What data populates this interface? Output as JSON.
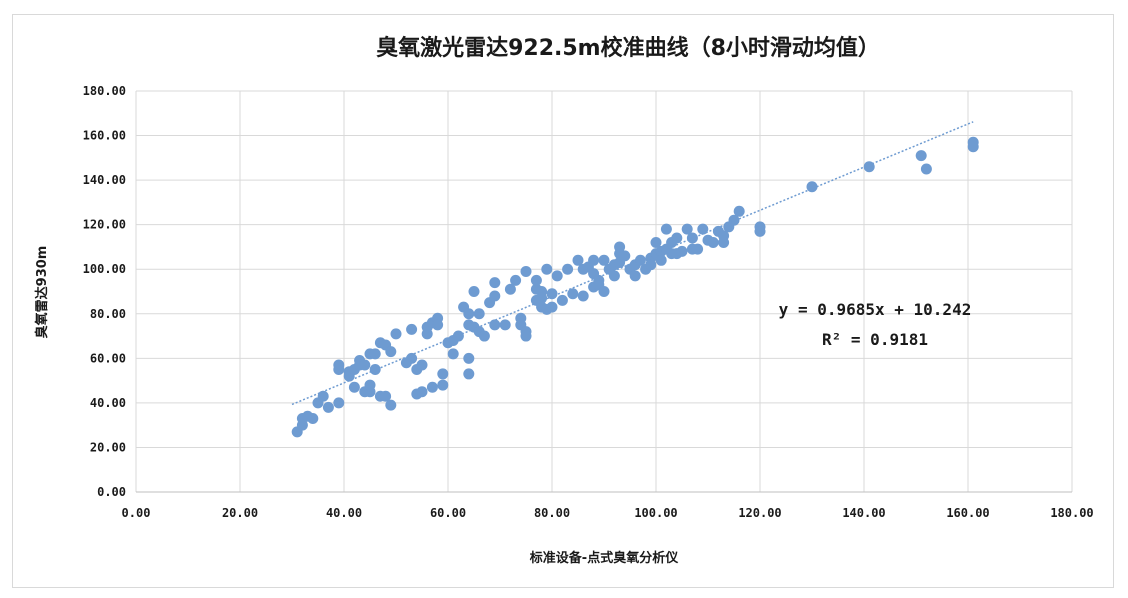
{
  "chart_data": {
    "type": "scatter",
    "title": "臭氧激光雷达922.5m校准曲线（8小时滑动均值）",
    "xlabel": "标准设备-点式臭氧分析仪",
    "ylabel": "臭氧雷达930m",
    "xlim": [
      0,
      180
    ],
    "ylim": [
      0,
      180
    ],
    "x_ticks": [
      "0.00",
      "20.00",
      "40.00",
      "60.00",
      "80.00",
      "100.00",
      "120.00",
      "140.00",
      "160.00",
      "180.00"
    ],
    "y_ticks": [
      "0.00",
      "20.00",
      "40.00",
      "60.00",
      "80.00",
      "100.00",
      "120.00",
      "140.00",
      "160.00",
      "180.00"
    ],
    "grid": true,
    "marker_color": "#6e9bd1",
    "trendline": {
      "slope": 0.9685,
      "intercept": 10.242,
      "x_range": [
        30,
        161
      ],
      "color": "#6e9bd1",
      "style": "dotted"
    },
    "equation_label": "y = 0.9685x + 10.242",
    "r2_label": "R² = 0.9181",
    "points": [
      [
        31,
        27
      ],
      [
        32,
        30
      ],
      [
        32,
        33
      ],
      [
        33,
        34
      ],
      [
        34,
        33
      ],
      [
        35,
        40
      ],
      [
        36,
        43
      ],
      [
        37,
        38
      ],
      [
        39,
        40
      ],
      [
        39,
        55
      ],
      [
        39,
        57
      ],
      [
        41,
        52
      ],
      [
        41,
        54
      ],
      [
        42,
        55
      ],
      [
        42,
        47
      ],
      [
        43,
        59
      ],
      [
        43,
        57
      ],
      [
        44,
        45
      ],
      [
        44,
        57
      ],
      [
        45,
        45
      ],
      [
        45,
        48
      ],
      [
        45,
        62
      ],
      [
        46,
        55
      ],
      [
        46,
        62
      ],
      [
        47,
        43
      ],
      [
        47,
        67
      ],
      [
        48,
        66
      ],
      [
        48,
        43
      ],
      [
        49,
        39
      ],
      [
        49,
        63
      ],
      [
        50,
        71
      ],
      [
        52,
        58
      ],
      [
        53,
        60
      ],
      [
        53,
        73
      ],
      [
        54,
        55
      ],
      [
        54,
        44
      ],
      [
        55,
        45
      ],
      [
        55,
        57
      ],
      [
        56,
        71
      ],
      [
        56,
        74
      ],
      [
        57,
        47
      ],
      [
        57,
        76
      ],
      [
        58,
        78
      ],
      [
        58,
        75
      ],
      [
        59,
        53
      ],
      [
        59,
        48
      ],
      [
        60,
        67
      ],
      [
        61,
        62
      ],
      [
        61,
        68
      ],
      [
        62,
        70
      ],
      [
        63,
        83
      ],
      [
        64,
        60
      ],
      [
        64,
        53
      ],
      [
        64,
        80
      ],
      [
        64,
        75
      ],
      [
        65,
        74
      ],
      [
        65,
        90
      ],
      [
        66,
        72
      ],
      [
        66,
        80
      ],
      [
        67,
        70
      ],
      [
        68,
        85
      ],
      [
        69,
        88
      ],
      [
        69,
        94
      ],
      [
        69,
        75
      ],
      [
        71,
        75
      ],
      [
        72,
        91
      ],
      [
        73,
        95
      ],
      [
        74,
        75
      ],
      [
        74,
        78
      ],
      [
        75,
        99
      ],
      [
        75,
        72
      ],
      [
        75,
        70
      ],
      [
        77,
        86
      ],
      [
        77,
        91
      ],
      [
        77,
        95
      ],
      [
        78,
        90
      ],
      [
        78,
        83
      ],
      [
        78,
        87
      ],
      [
        79,
        82
      ],
      [
        79,
        100
      ],
      [
        80,
        89
      ],
      [
        80,
        83
      ],
      [
        81,
        97
      ],
      [
        82,
        86
      ],
      [
        83,
        100
      ],
      [
        84,
        89
      ],
      [
        85,
        104
      ],
      [
        86,
        100
      ],
      [
        86,
        88
      ],
      [
        87,
        101
      ],
      [
        88,
        104
      ],
      [
        88,
        98
      ],
      [
        88,
        92
      ],
      [
        89,
        95
      ],
      [
        89,
        93
      ],
      [
        90,
        104
      ],
      [
        90,
        90
      ],
      [
        91,
        100
      ],
      [
        92,
        102
      ],
      [
        92,
        97
      ],
      [
        93,
        107
      ],
      [
        93,
        110
      ],
      [
        93,
        103
      ],
      [
        94,
        106
      ],
      [
        95,
        100
      ],
      [
        96,
        97
      ],
      [
        96,
        102
      ],
      [
        97,
        104
      ],
      [
        98,
        100
      ],
      [
        99,
        105
      ],
      [
        99,
        102
      ],
      [
        100,
        112
      ],
      [
        100,
        107
      ],
      [
        101,
        108
      ],
      [
        101,
        104
      ],
      [
        102,
        118
      ],
      [
        102,
        109
      ],
      [
        103,
        107
      ],
      [
        103,
        112
      ],
      [
        104,
        114
      ],
      [
        104,
        107
      ],
      [
        105,
        108
      ],
      [
        106,
        118
      ],
      [
        107,
        114
      ],
      [
        107,
        109
      ],
      [
        108,
        109
      ],
      [
        109,
        118
      ],
      [
        110,
        113
      ],
      [
        111,
        112
      ],
      [
        112,
        117
      ],
      [
        113,
        115
      ],
      [
        113,
        112
      ],
      [
        114,
        119
      ],
      [
        115,
        122
      ],
      [
        116,
        126
      ],
      [
        120,
        119
      ],
      [
        120,
        117
      ],
      [
        130,
        137
      ],
      [
        141,
        146
      ],
      [
        151,
        151
      ],
      [
        152,
        145
      ],
      [
        161,
        157
      ],
      [
        161,
        155
      ]
    ]
  }
}
